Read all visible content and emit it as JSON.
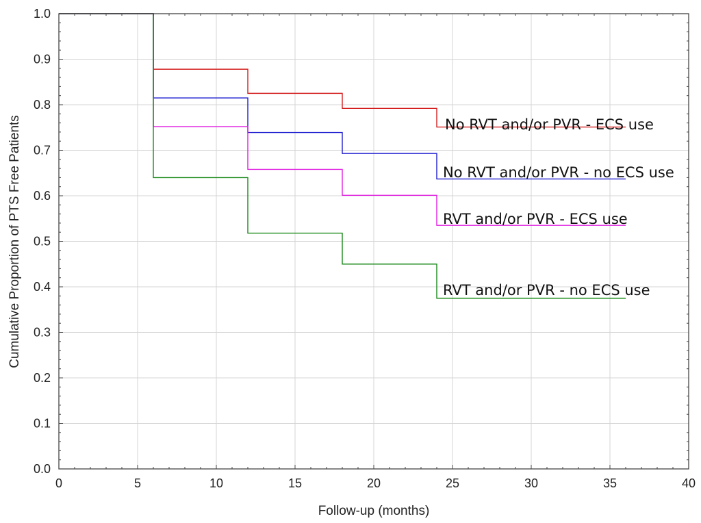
{
  "chart_data": {
    "type": "line",
    "step": true,
    "title": "",
    "xlabel": "Follow-up (months)",
    "ylabel": "Cumulative Proportion of PTS Free Patients",
    "xlim": [
      0,
      40
    ],
    "ylim": [
      0.0,
      1.0
    ],
    "xticks": [
      0,
      5,
      10,
      15,
      20,
      25,
      30,
      35,
      40
    ],
    "xtick_labels": [
      "0",
      "5",
      "10",
      "15",
      "20",
      "25",
      "30",
      "35",
      "40"
    ],
    "yticks": [
      0.0,
      0.1,
      0.2,
      0.3,
      0.4,
      0.5,
      0.6,
      0.7,
      0.8,
      0.9,
      1.0
    ],
    "ytick_labels": [
      "0.0",
      "0.1",
      "0.2",
      "0.3",
      "0.4",
      "0.5",
      "0.6",
      "0.7",
      "0.8",
      "0.9",
      "1.0"
    ],
    "grid": true,
    "legend": "labels next to lines, right side",
    "series": [
      {
        "name": "No RVT and/or PVR - ECS use",
        "color": "#d42020",
        "x": [
          0,
          6,
          12,
          18,
          24,
          36
        ],
        "y": [
          1.0,
          0.878,
          0.825,
          0.792,
          0.751,
          0.751
        ]
      },
      {
        "name": "No RVT and/or PVR - no ECS use",
        "color": "#1f1fd0",
        "x": [
          0,
          6,
          12,
          18,
          24,
          36
        ],
        "y": [
          1.0,
          0.815,
          0.739,
          0.693,
          0.637,
          0.637
        ]
      },
      {
        "name": "RVT and/or PVR - ECS use",
        "color": "#e020e0",
        "x": [
          0,
          6,
          12,
          18,
          24,
          36
        ],
        "y": [
          1.0,
          0.752,
          0.658,
          0.601,
          0.535,
          0.535
        ]
      },
      {
        "name": "RVT and/or PVR - no ECS use",
        "color": "#1a8a1a",
        "x": [
          0,
          6,
          12,
          18,
          24,
          36
        ],
        "y": [
          1.0,
          0.64,
          0.518,
          0.45,
          0.375,
          0.375
        ]
      }
    ]
  }
}
